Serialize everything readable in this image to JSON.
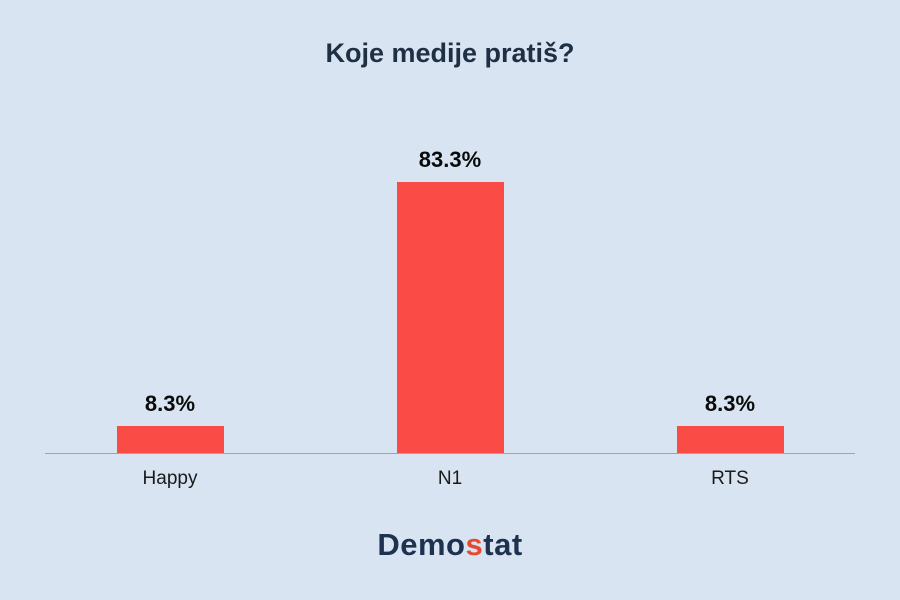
{
  "title": "Koje medije pratiš?",
  "chart_data": {
    "type": "bar",
    "title": "Koje medije pratiš?",
    "categories": [
      "Happy",
      "N1",
      "RTS"
    ],
    "values": [
      8.3,
      83.3,
      8.3
    ],
    "value_labels": [
      "8.3%",
      "83.3%",
      "8.3%"
    ],
    "xlabel": "",
    "ylabel": "",
    "ylim": [
      0,
      100
    ],
    "grid": false,
    "legend": "none",
    "bar_color": "#fa4b47",
    "background_color": "#d9e4f2"
  },
  "footer": {
    "logo_part1": "Demo",
    "logo_accent": "s",
    "logo_part2": "tat"
  },
  "colors": {
    "title_text": "#1f3044",
    "label_text": "#0a0a0a",
    "axis_line": "#9aa6b4",
    "logo_primary": "#1e3250",
    "logo_accent": "#e8482e"
  }
}
